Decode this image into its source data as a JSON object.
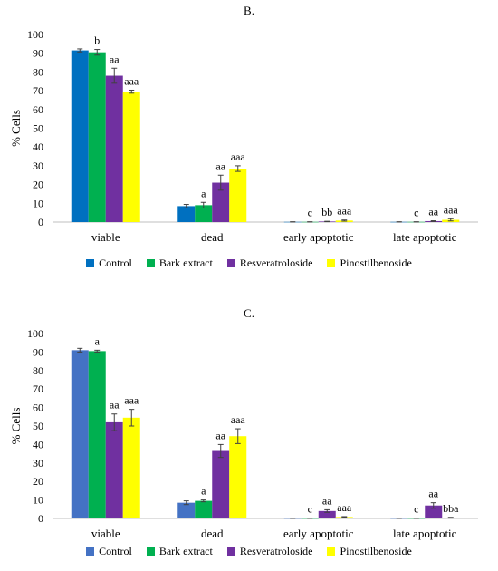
{
  "chart_data": [
    {
      "type": "bar",
      "title": "B.",
      "xlabel": "",
      "ylabel": "% Cells",
      "ylim": [
        0,
        100
      ],
      "yticks": [
        0,
        10,
        20,
        30,
        40,
        50,
        60,
        70,
        80,
        90,
        100
      ],
      "grid": false,
      "legend_position": "bottom",
      "categories": [
        "viable",
        "dead",
        "early apoptotic",
        "late apoptotic"
      ],
      "series": [
        {
          "name": "Control",
          "color": "#0070C0",
          "values": [
            91.5,
            8.5,
            0.1,
            0.1
          ],
          "errors": [
            0.8,
            0.9,
            0.05,
            0.05
          ],
          "labels": [
            "",
            "",
            "",
            ""
          ]
        },
        {
          "name": "Bark extract",
          "color": "#00B050",
          "values": [
            90.5,
            9.0,
            0.1,
            0.1
          ],
          "errors": [
            1.5,
            1.5,
            0.05,
            0.05
          ],
          "labels": [
            "b",
            "a",
            "c",
            "c"
          ]
        },
        {
          "name": "Resveratroloside",
          "color": "#7030A0",
          "values": [
            78.0,
            21.0,
            0.3,
            0.5
          ],
          "errors": [
            4.0,
            4.0,
            0.1,
            0.2
          ],
          "labels": [
            "aa",
            "aa",
            "bb",
            "aa"
          ]
        },
        {
          "name": "Pinostilbenoside",
          "color": "#FFFF00",
          "values": [
            69.5,
            28.5,
            0.8,
            1.2
          ],
          "errors": [
            0.8,
            1.5,
            0.3,
            0.6
          ],
          "labels": [
            "aaa",
            "aaa",
            "aaa",
            "aaa"
          ]
        }
      ]
    },
    {
      "type": "bar",
      "title": "C.",
      "xlabel": "",
      "ylabel": "% Cells",
      "ylim": [
        0,
        100
      ],
      "yticks": [
        0,
        10,
        20,
        30,
        40,
        50,
        60,
        70,
        80,
        90,
        100
      ],
      "grid": false,
      "legend_position": "bottom",
      "categories": [
        "viable",
        "dead",
        "early apoptotic",
        "late apoptotic"
      ],
      "series": [
        {
          "name": "Control",
          "color": "#4472C4",
          "values": [
            91.0,
            8.5,
            0.1,
            0.1
          ],
          "errors": [
            1.0,
            1.0,
            0.05,
            0.05
          ],
          "labels": [
            "",
            "",
            "",
            ""
          ]
        },
        {
          "name": "Bark extract",
          "color": "#00B050",
          "values": [
            90.5,
            9.5,
            0.1,
            0.1
          ],
          "errors": [
            0.5,
            0.5,
            0.05,
            0.05
          ],
          "labels": [
            "a",
            "a",
            "c",
            "c"
          ]
        },
        {
          "name": "Resveratroloside",
          "color": "#7030A0",
          "values": [
            52.0,
            36.5,
            4.0,
            7.0
          ],
          "errors": [
            4.5,
            3.5,
            0.7,
            1.5
          ],
          "labels": [
            "aa",
            "aa",
            "aa",
            "aa"
          ]
        },
        {
          "name": "Pinostilbenoside",
          "color": "#FFFF00",
          "values": [
            54.5,
            44.5,
            0.8,
            0.4
          ],
          "errors": [
            4.5,
            4.0,
            0.2,
            0.2
          ],
          "labels": [
            "aaa",
            "aaa",
            "aaa",
            "bba"
          ]
        }
      ]
    }
  ]
}
